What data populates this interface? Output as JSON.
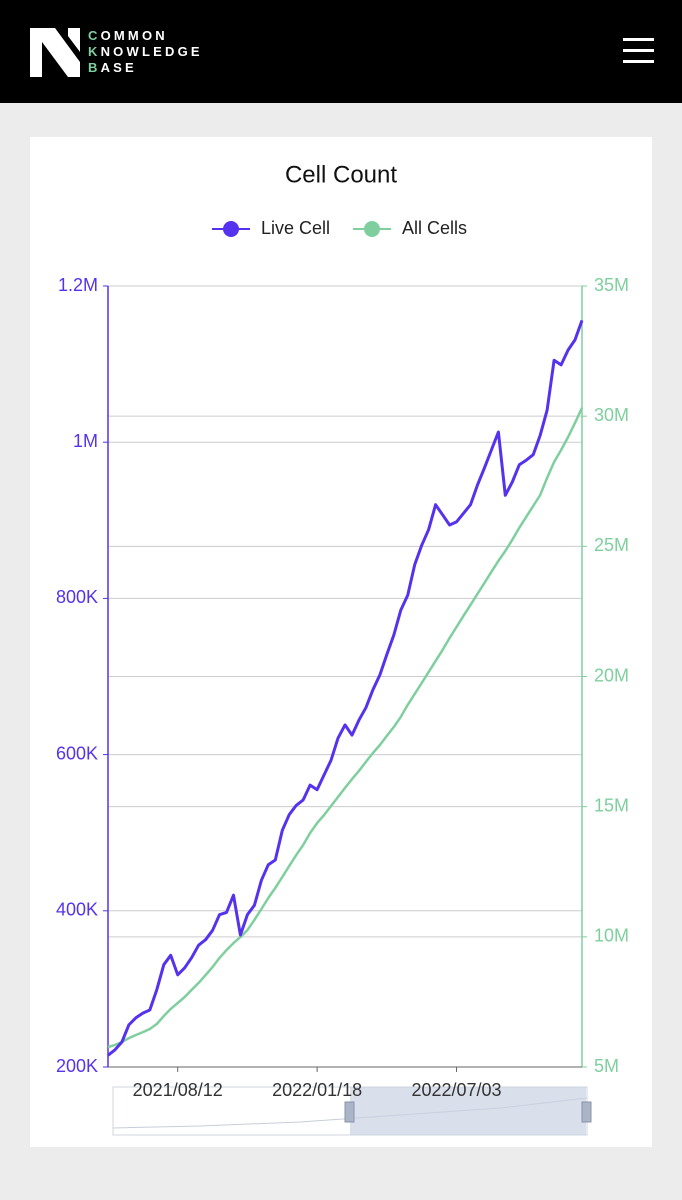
{
  "header": {
    "logo_lines": [
      "COMMON",
      "KNOWLEDGE",
      "BASE"
    ]
  },
  "chart_data": {
    "type": "line",
    "title": "Cell Count",
    "categories": [
      null,
      null,
      null,
      null,
      null,
      null,
      null,
      null,
      null,
      null,
      "2021/08/12",
      null,
      null,
      null,
      null,
      null,
      null,
      null,
      null,
      null,
      null,
      null,
      null,
      null,
      null,
      null,
      null,
      null,
      null,
      null,
      "2022/01/18",
      null,
      null,
      null,
      null,
      null,
      null,
      null,
      null,
      null,
      null,
      null,
      null,
      null,
      null,
      null,
      null,
      null,
      null,
      null,
      "2022/07/03",
      null,
      null,
      null,
      null,
      null,
      null,
      null,
      null,
      null,
      null,
      null,
      null,
      null,
      null,
      null,
      null,
      null,
      null
    ],
    "series": [
      {
        "name": "Live Cell",
        "color": "#5533ee",
        "axis": "y",
        "values": [
          215000,
          222000,
          232000,
          254000,
          263000,
          269000,
          273000,
          299000,
          331000,
          343000,
          318000,
          327000,
          340000,
          356000,
          363000,
          375000,
          395000,
          398000,
          420000,
          369000,
          395000,
          407000,
          439000,
          459000,
          465000,
          503000,
          523000,
          535000,
          542000,
          561000,
          555000,
          574000,
          593000,
          621000,
          638000,
          625000,
          644000,
          660000,
          683000,
          702000,
          728000,
          753000,
          785000,
          804000,
          843000,
          868000,
          888000,
          920000,
          907000,
          894000,
          898000,
          909000,
          920000,
          945000,
          967000,
          990000,
          1013000,
          932000,
          949000,
          971000,
          977000,
          984000,
          1009000,
          1041000,
          1105000,
          1099000,
          1118000,
          1131000,
          1156000
        ]
      },
      {
        "name": "All Cells",
        "color": "#7fcf9e",
        "axis": "y2",
        "values": [
          5770000,
          5850000,
          5960000,
          6110000,
          6230000,
          6340000,
          6460000,
          6650000,
          6960000,
          7230000,
          7460000,
          7690000,
          7960000,
          8230000,
          8530000,
          8840000,
          9190000,
          9490000,
          9760000,
          9990000,
          10260000,
          10650000,
          11070000,
          11490000,
          11880000,
          12300000,
          12720000,
          13140000,
          13530000,
          13990000,
          14370000,
          14680000,
          15030000,
          15370000,
          15720000,
          16060000,
          16370000,
          16720000,
          17060000,
          17370000,
          17720000,
          18060000,
          18450000,
          18910000,
          19330000,
          19750000,
          20170000,
          20600000,
          21020000,
          21480000,
          21900000,
          22330000,
          22750000,
          23170000,
          23590000,
          24020000,
          24440000,
          24820000,
          25250000,
          25710000,
          26130000,
          26550000,
          26970000,
          27630000,
          28240000,
          28700000,
          29200000,
          29740000,
          30320000
        ]
      }
    ],
    "ylim": [
      200000,
      1200000
    ],
    "yticks": [
      {
        "value": 200000,
        "label": "200K"
      },
      {
        "value": 400000,
        "label": "400K"
      },
      {
        "value": 600000,
        "label": "600K"
      },
      {
        "value": 800000,
        "label": "800K"
      },
      {
        "value": 1000000,
        "label": "1M"
      },
      {
        "value": 1200000,
        "label": "1.2M"
      }
    ],
    "y2lim": [
      5000000,
      35000000
    ],
    "y2ticks": [
      {
        "value": 5000000,
        "label": "5M"
      },
      {
        "value": 10000000,
        "label": "10M"
      },
      {
        "value": 15000000,
        "label": "15M"
      },
      {
        "value": 20000000,
        "label": "20M"
      },
      {
        "value": 25000000,
        "label": "25M"
      },
      {
        "value": 30000000,
        "label": "30M"
      },
      {
        "value": 35000000,
        "label": "35M"
      }
    ],
    "grid": true,
    "legend": "top"
  }
}
